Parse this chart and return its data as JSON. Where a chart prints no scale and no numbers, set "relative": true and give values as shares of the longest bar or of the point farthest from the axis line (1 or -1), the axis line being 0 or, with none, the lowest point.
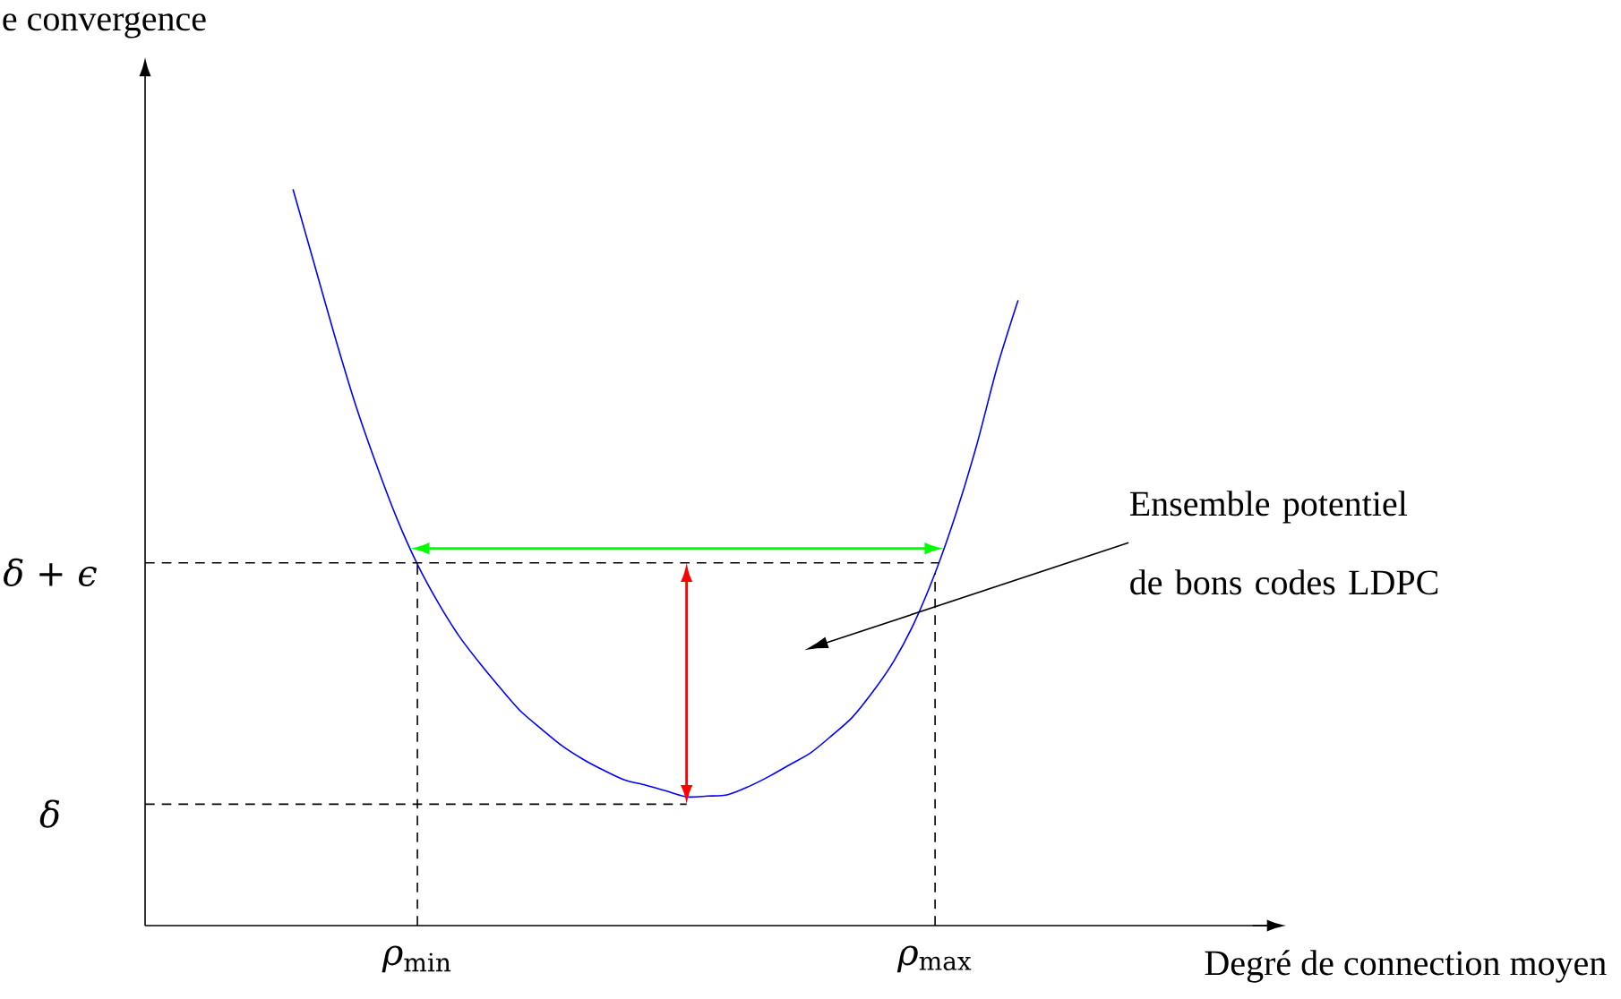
{
  "chart_data": {
    "type": "line",
    "relative": true,
    "xlabel": "Degré de connection moyen",
    "ylabel": "e convergence",
    "categories": [
      null,
      null,
      null,
      null,
      null,
      null,
      "*ρ*$_{min}$",
      null,
      null,
      null,
      null,
      null,
      null,
      null,
      null,
      null,
      null,
      null,
      null,
      null,
      null,
      null,
      null,
      null,
      null,
      null,
      null,
      null,
      null,
      null,
      null,
      "*ρ*$_{max}$",
      null,
      null,
      null,
      null
    ],
    "series": [
      {
        "color": "#0000ff",
        "values": [
          1.0,
          0.901,
          0.802,
          0.709,
          0.628,
          0.554,
          0.491,
          0.439,
          0.394,
          0.357,
          0.323,
          0.291,
          0.267,
          0.244,
          0.226,
          0.211,
          0.198,
          0.191,
          0.183,
          0.175,
          0.176,
          0.178,
          0.189,
          0.203,
          0.219,
          0.235,
          0.258,
          0.283,
          0.318,
          0.359,
          0.412,
          0.479,
          0.559,
          0.652,
          0.759,
          0.849
        ]
      }
    ],
    "ref_lines": [
      {
        "axis": "y",
        "value": 0.493,
        "label": "δ + ϵ",
        "line_style": "dashed"
      },
      {
        "axis": "y",
        "value": 0.165,
        "label": "δ",
        "line_style": "dashed"
      },
      {
        "axis": "x",
        "value": "*ρ*$_{min}$",
        "line_style": "dashed"
      },
      {
        "axis": "x",
        "value": "*ρ*$_{max}$",
        "line_style": "dashed"
      }
    ],
    "annotations": [
      "Ensemble potentiel de bons codes LDPC"
    ]
  }
}
